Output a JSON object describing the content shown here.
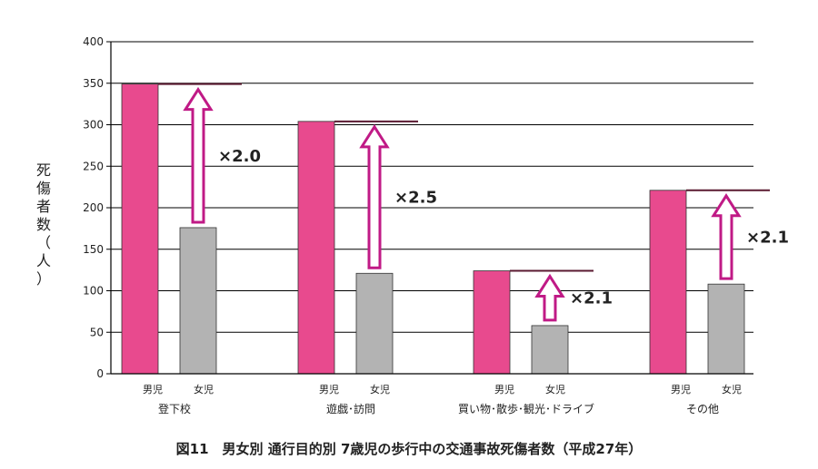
{
  "chart_data": {
    "type": "bar",
    "title": "図11　男女別 通行目的別 7歳児の歩行中の交通事故死傷者数（平成27年）",
    "ylabel": "死傷者数（人）",
    "ylim": [
      0,
      400
    ],
    "yticks": [
      0,
      50,
      100,
      150,
      200,
      250,
      300,
      350,
      400
    ],
    "grid": true,
    "colors": {
      "boys": "#e84a8e",
      "girls": "#b3b3b3",
      "arrow": "#c01a86",
      "grid": "#000000"
    },
    "categories": [
      {
        "label": "登下校",
        "boys_label": "男児",
        "girls_label": "女児",
        "boys": 349,
        "girls": 176,
        "ratio_label": "×2.0"
      },
      {
        "label": "遊戯･訪問",
        "boys_label": "男児",
        "girls_label": "女児",
        "boys": 304,
        "girls": 121,
        "ratio_label": "×2.5"
      },
      {
        "label": "買い物･散歩･観光･ドライブ",
        "boys_label": "男児",
        "girls_label": "女児",
        "boys": 124,
        "girls": 58,
        "ratio_label": "×2.1"
      },
      {
        "label": "その他",
        "boys_label": "男児",
        "girls_label": "女児",
        "boys": 221,
        "girls": 108,
        "ratio_label": "×2.1"
      }
    ]
  }
}
